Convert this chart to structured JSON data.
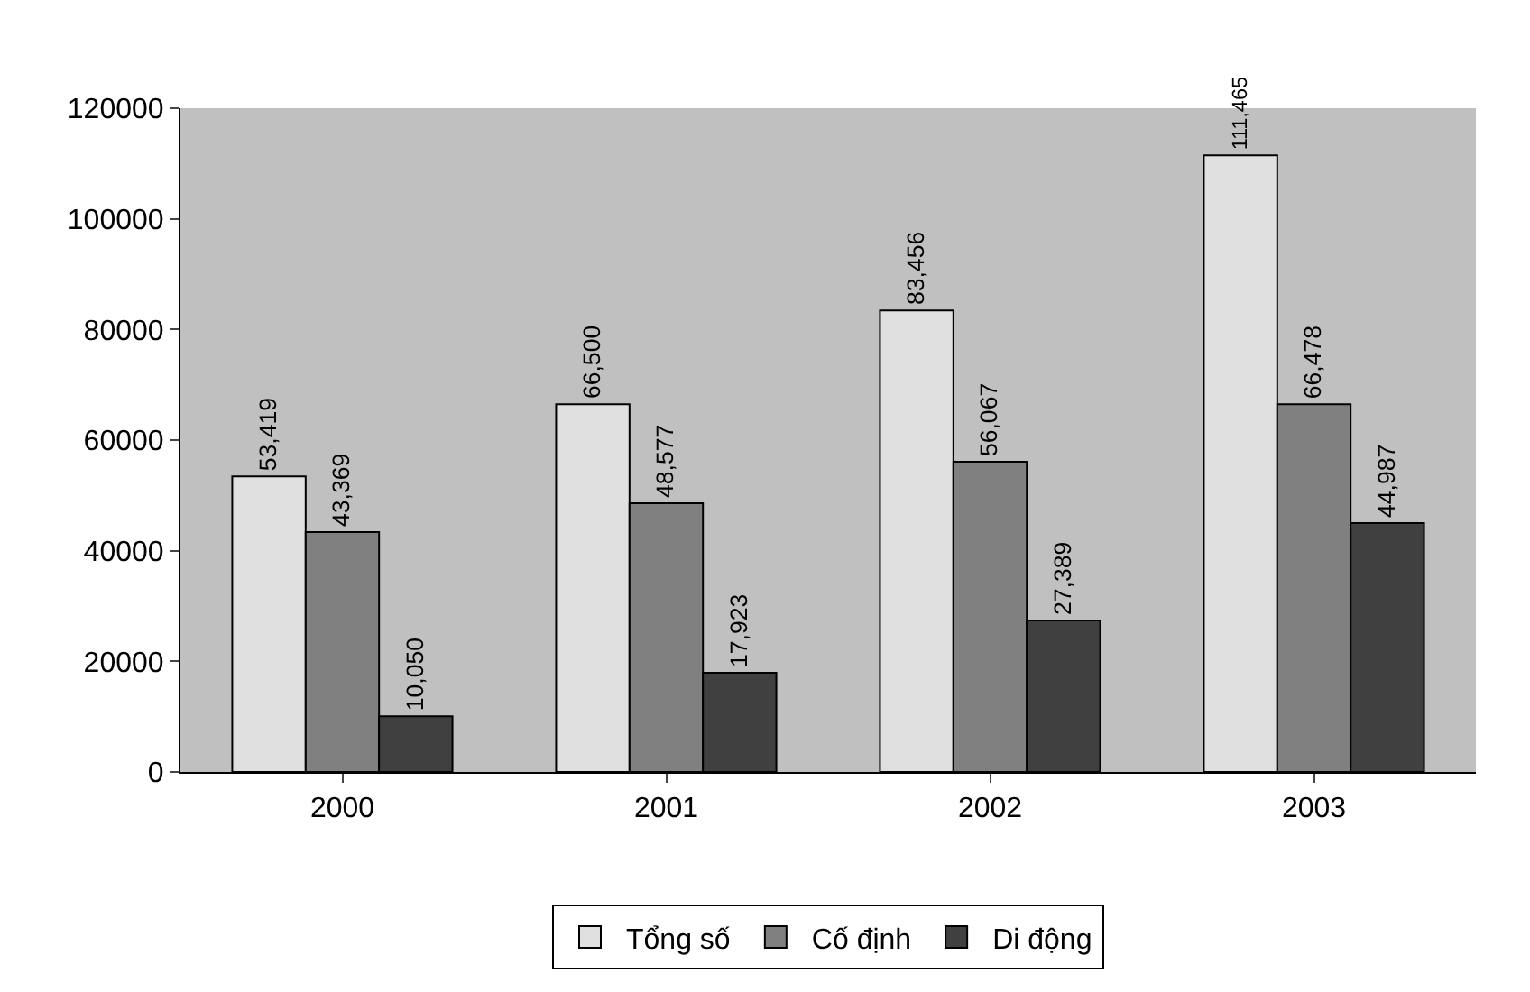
{
  "chart_data": {
    "type": "bar",
    "categories": [
      "2000",
      "2001",
      "2002",
      "2003"
    ],
    "series": [
      {
        "name": "Tổng số",
        "color": "#e0e0e0",
        "values": [
          53419,
          66500,
          83456,
          111465
        ],
        "value_labels": [
          "53,419",
          "66,500",
          "83,456",
          "111,465"
        ]
      },
      {
        "name": "Cố định",
        "color": "#808080",
        "values": [
          43369,
          48577,
          56067,
          66478
        ],
        "value_labels": [
          "43,369",
          "48,577",
          "56,067",
          "66,478"
        ]
      },
      {
        "name": "Di động",
        "color": "#404040",
        "values": [
          10050,
          17923,
          27389,
          44987
        ],
        "value_labels": [
          "10,050",
          "17,923",
          "27,389",
          "44,987"
        ]
      }
    ],
    "ylim": [
      0,
      120000
    ],
    "yticks": [
      0,
      20000,
      40000,
      60000,
      80000,
      100000,
      120000
    ],
    "grid": false,
    "legend": "bottom"
  }
}
